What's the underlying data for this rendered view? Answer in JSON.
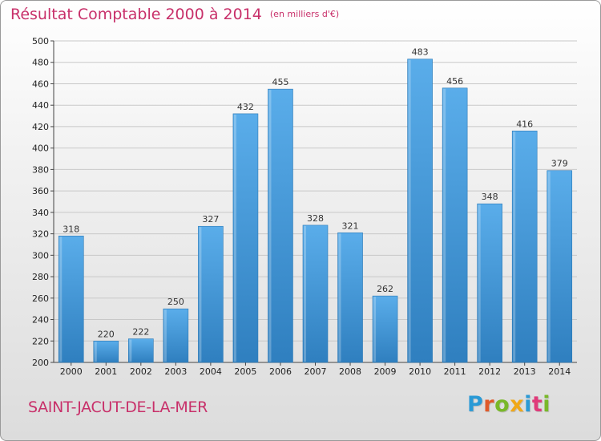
{
  "chart_data": {
    "type": "bar",
    "title": "Résultat Comptable 2000 à 2014",
    "unit_label": "(en milliers d'€)",
    "categories": [
      "2000",
      "2001",
      "2002",
      "2003",
      "2004",
      "2005",
      "2006",
      "2007",
      "2008",
      "2009",
      "2010",
      "2011",
      "2012",
      "2013",
      "2014"
    ],
    "values": [
      318,
      220,
      222,
      250,
      327,
      432,
      455,
      328,
      321,
      262,
      483,
      456,
      348,
      416,
      379
    ],
    "ylim": [
      200,
      500
    ],
    "yticks": [
      200,
      220,
      240,
      260,
      280,
      300,
      320,
      340,
      360,
      380,
      400,
      420,
      440,
      460,
      480,
      500
    ],
    "grid": true,
    "bar_color": "#3d95d8"
  },
  "footer": {
    "city": "SAINT-JACUT-DE-LA-MER",
    "logo_letters": [
      {
        "ch": "P",
        "color": "#2a9ad6"
      },
      {
        "ch": "r",
        "color": "#e05a2a"
      },
      {
        "ch": "o",
        "color": "#79b829"
      },
      {
        "ch": "x",
        "color": "#f0a818"
      },
      {
        "ch": "i",
        "color": "#2a9ad6"
      },
      {
        "ch": "t",
        "color": "#e03a7a"
      },
      {
        "ch": "i",
        "color": "#79b829"
      }
    ]
  }
}
